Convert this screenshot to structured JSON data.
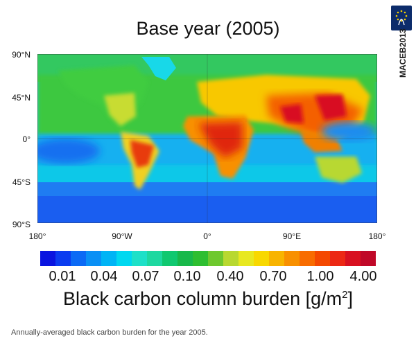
{
  "title": "Base year (2005)",
  "badge": {
    "line1": "MACEB",
    "line2": "2013",
    "icon": "eu-stars-logo",
    "color": "#0c2c6b"
  },
  "map": {
    "projection": "equirectangular",
    "lat_labels": [
      "90°N",
      "45°N",
      "0°",
      "45°S",
      "90°S"
    ],
    "lon_labels": [
      "180°",
      "90°W",
      "0°",
      "90°E",
      "180°"
    ],
    "ocean_color": "#1aa0f0",
    "land_color_low": "#22c060",
    "land_color_high": "#d01020"
  },
  "colorbar": {
    "colors": [
      "#0a14e0",
      "#0b3cf0",
      "#0c6af5",
      "#0a90f5",
      "#00b4f5",
      "#00d8f0",
      "#1ee0c8",
      "#1ed8a0",
      "#10c870",
      "#18b84a",
      "#2ebe30",
      "#6ec82e",
      "#b8d830",
      "#e8e820",
      "#f8d800",
      "#f8b400",
      "#f89000",
      "#f86c00",
      "#f44800",
      "#ec2814",
      "#d81020",
      "#c00828"
    ],
    "tick_labels": [
      "0.01",
      "0.04",
      "0.07",
      "0.10",
      "0.40",
      "0.70",
      "1.00",
      "4.00"
    ],
    "label_main": "Black carbon column burden [g/m",
    "label_sup": "2",
    "label_end": "]"
  },
  "caption": "Annually-averaged black carbon burden for the year 2005."
}
